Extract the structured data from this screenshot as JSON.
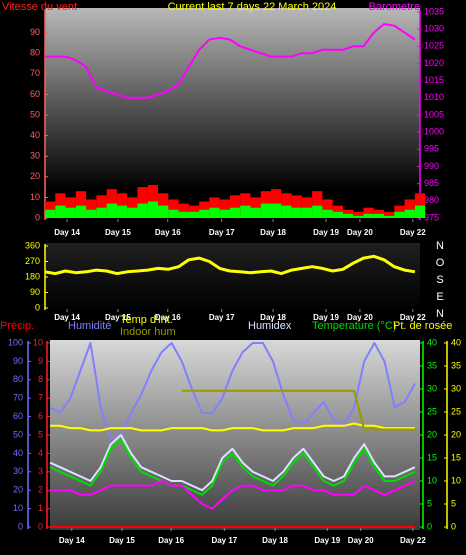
{
  "chart_data": [
    {
      "type": "combo",
      "title": "Current last 7 days 22 March 2024",
      "ylabel": "Vitesse du vent",
      "x": [
        0,
        0.2,
        0.4,
        0.6,
        0.8,
        1,
        1.2,
        1.4,
        1.6,
        1.8,
        2,
        2.2,
        2.4,
        2.6,
        2.8,
        3,
        3.2,
        3.4,
        3.6,
        3.8,
        4,
        4.2,
        4.4,
        4.6,
        4.8,
        5,
        5.2,
        5.4,
        5.6,
        5.8,
        6,
        6.2,
        6.4,
        6.6,
        6.8,
        7,
        7.2
      ],
      "xlim": [
        0,
        7.3
      ],
      "xticks": [
        {
          "value": 0.43,
          "label": "Day 14"
        },
        {
          "value": 1.42,
          "label": "Day 15"
        },
        {
          "value": 2.39,
          "label": "Day 16"
        },
        {
          "value": 3.44,
          "label": "Day 17"
        },
        {
          "value": 4.44,
          "label": "Day 18"
        },
        {
          "value": 5.47,
          "label": "Day 19"
        },
        {
          "value": 6.13,
          "label": "Day 20"
        },
        {
          "value": 7.16,
          "label": "Day 22"
        }
      ],
      "ylim": [
        0,
        100
      ],
      "yticks": [
        0,
        10,
        20,
        30,
        40,
        50,
        60,
        70,
        80,
        90
      ],
      "ycolor": "#ff6060",
      "y2lim": [
        975,
        1035
      ],
      "y2ticks": [
        975,
        980,
        985,
        990,
        995,
        1000,
        1005,
        1010,
        1015,
        1020,
        1025,
        1030,
        1035
      ],
      "y2color": "#ff00ff",
      "series": [
        {
          "color": "#ff0000",
          "kind": "bar",
          "values": [
            8,
            12,
            10,
            13,
            9,
            11,
            14,
            12,
            10,
            15,
            16,
            12,
            9,
            7,
            6,
            8,
            10,
            9,
            11,
            12,
            10,
            13,
            14,
            12,
            11,
            10,
            13,
            9,
            6,
            4,
            3,
            5,
            4,
            3,
            6,
            9,
            12
          ]
        },
        {
          "color": "#00ff00",
          "kind": "bar",
          "values": [
            4,
            6,
            5,
            6,
            4,
            5,
            7,
            6,
            5,
            7,
            8,
            6,
            4,
            3,
            3,
            4,
            5,
            4,
            5,
            6,
            5,
            7,
            7,
            6,
            5,
            5,
            6,
            4,
            3,
            2,
            1,
            2,
            2,
            1,
            3,
            4,
            6
          ]
        },
        {
          "name": "Barometre",
          "color": "#ff00ff",
          "axis": "y2",
          "values": [
            1022,
            1022,
            1022,
            1021,
            1019,
            1013,
            1012,
            1011,
            1010,
            1010,
            1010,
            1011,
            1012,
            1014,
            1019,
            1024,
            1027,
            1027.5,
            1027,
            1025,
            1024,
            1023,
            1022,
            1022,
            1022,
            1023,
            1023,
            1024,
            1024,
            1024,
            1025,
            1025,
            1029,
            1031.5,
            1031,
            1029,
            1027
          ]
        }
      ]
    },
    {
      "type": "line",
      "x": [
        0,
        0.2,
        0.4,
        0.6,
        0.8,
        1,
        1.2,
        1.4,
        1.6,
        1.8,
        2,
        2.2,
        2.4,
        2.6,
        2.8,
        3,
        3.2,
        3.4,
        3.6,
        3.8,
        4,
        4.2,
        4.4,
        4.6,
        4.8,
        5,
        5.2,
        5.4,
        5.6,
        5.8,
        6,
        6.2,
        6.4,
        6.6,
        6.8,
        7,
        7.2
      ],
      "xlim": [
        0,
        7.3
      ],
      "xticks": [
        {
          "value": 0.43,
          "label": "Day 14"
        },
        {
          "value": 1.42,
          "label": "Day 15"
        },
        {
          "value": 2.39,
          "label": "Day 16"
        },
        {
          "value": 3.44,
          "label": "Day 17"
        },
        {
          "value": 4.44,
          "label": "Day 18"
        },
        {
          "value": 5.47,
          "label": "Day 19"
        },
        {
          "value": 6.13,
          "label": "Day 20"
        },
        {
          "value": 7.16,
          "label": "Day 22"
        }
      ],
      "ylim": [
        0,
        360
      ],
      "yticks": [
        0,
        90,
        180,
        270,
        360
      ],
      "ycolor": "#ffff00",
      "compass": [
        "N",
        "O",
        "S",
        "E",
        "N"
      ],
      "series": [
        {
          "color": "#ffff00",
          "values": [
            210,
            200,
            215,
            205,
            210,
            220,
            215,
            200,
            210,
            215,
            220,
            230,
            225,
            240,
            280,
            290,
            270,
            230,
            215,
            210,
            205,
            210,
            215,
            200,
            220,
            230,
            240,
            230,
            215,
            225,
            260,
            290,
            300,
            280,
            240,
            220,
            210
          ]
        }
      ]
    },
    {
      "type": "line",
      "x": [
        0,
        0.2,
        0.4,
        0.6,
        0.8,
        1,
        1.2,
        1.4,
        1.6,
        1.8,
        2,
        2.2,
        2.4,
        2.6,
        2.8,
        3,
        3.2,
        3.4,
        3.6,
        3.8,
        4,
        4.2,
        4.4,
        4.6,
        4.8,
        5,
        5.2,
        5.4,
        5.6,
        5.8,
        6,
        6.2,
        6.4,
        6.6,
        6.8,
        7,
        7.2
      ],
      "xlim": [
        0,
        7.3
      ],
      "xticks": [
        {
          "value": 0.43,
          "label": "Day 14"
        },
        {
          "value": 1.42,
          "label": "Day 15"
        },
        {
          "value": 2.39,
          "label": "Day 16"
        },
        {
          "value": 3.44,
          "label": "Day 17"
        },
        {
          "value": 4.44,
          "label": "Day 18"
        },
        {
          "value": 5.47,
          "label": "Day 19"
        },
        {
          "value": 6.13,
          "label": "Day 20"
        },
        {
          "value": 7.16,
          "label": "Day 22"
        }
      ],
      "ylim": [
        0,
        100
      ],
      "yticks": [
        0,
        10,
        20,
        30,
        40,
        50,
        60,
        70,
        80,
        90,
        100
      ],
      "ycolor": "#7070ff",
      "plim": [
        0,
        10
      ],
      "pticks": [
        0,
        1,
        2,
        3,
        4,
        5,
        6,
        7,
        8,
        9,
        10
      ],
      "pcolor": "#ff2020",
      "y2lim": [
        0,
        40
      ],
      "y2ticks": [
        0,
        5,
        10,
        15,
        20,
        25,
        30,
        35,
        40
      ],
      "y2color": "#00ff00",
      "y3lim": [
        0,
        40
      ],
      "y3ticks": [
        0,
        5,
        10,
        15,
        20,
        25,
        30,
        35,
        40
      ],
      "y3color": "#ffff00",
      "series": [
        {
          "name": "Précip.",
          "color": "#ff0000",
          "axis": "p",
          "values": [
            0,
            0,
            0,
            0,
            0,
            0,
            0,
            0,
            0,
            0,
            0,
            0,
            0,
            0,
            0,
            0,
            0,
            0,
            0,
            0,
            0,
            0,
            0,
            0,
            0,
            0,
            0,
            0,
            0,
            0,
            0,
            0,
            0,
            0,
            0,
            0,
            0
          ]
        },
        {
          "name": "Humidité",
          "color": "#8080ff",
          "values": [
            65,
            62,
            70,
            85,
            100,
            65,
            48,
            50,
            62,
            72,
            85,
            95,
            100,
            90,
            75,
            62,
            62,
            70,
            85,
            95,
            100,
            100,
            90,
            72,
            58,
            56,
            62,
            68,
            58,
            55,
            65,
            90,
            100,
            90,
            65,
            68,
            78
          ]
        },
        {
          "name": "Temp d'int.",
          "color": "#ffff00",
          "axis": "y2",
          "values": [
            22,
            22,
            21.5,
            21.5,
            21,
            21,
            21.5,
            21.5,
            21.5,
            21,
            21,
            21,
            21.5,
            21.5,
            21.5,
            21.5,
            21,
            21,
            21.5,
            21.5,
            21.5,
            21,
            21,
            21,
            21.5,
            21.5,
            21.5,
            22,
            22,
            22,
            22.5,
            22,
            22,
            21.5,
            21.5,
            21.5,
            21.5
          ]
        },
        {
          "name": "Indoor hum",
          "color": "#999900",
          "values": [
            null,
            null,
            null,
            null,
            null,
            null,
            null,
            null,
            null,
            null,
            null,
            null,
            null,
            74,
            74,
            74,
            74,
            74,
            74,
            74,
            74,
            74,
            74,
            74,
            74,
            74,
            74,
            74,
            74,
            74,
            74,
            53,
            53,
            53,
            53,
            53,
            53
          ]
        },
        {
          "name": "Humidex",
          "color": "#d8e4ff",
          "axis": "y2",
          "values": [
            14,
            13,
            12,
            11,
            10,
            13,
            18,
            20,
            16,
            13,
            12,
            11,
            10,
            10,
            9,
            8,
            10,
            15,
            17,
            14,
            12,
            11,
            10,
            12,
            15,
            17,
            14,
            11,
            10,
            11,
            15,
            18,
            14,
            11,
            11,
            12,
            13
          ]
        },
        {
          "name": "Temperature (°C)",
          "color": "#00dd00",
          "axis": "y2",
          "values": [
            13,
            12,
            11,
            10,
            9,
            12,
            17,
            19,
            15,
            12,
            11,
            10,
            9,
            9,
            8,
            7,
            9,
            14,
            16,
            13,
            11,
            10,
            9,
            11,
            14,
            16,
            13,
            10,
            9,
            10,
            14,
            17,
            13,
            10,
            10,
            11,
            12
          ]
        },
        {
          "name": "Pt. de rosée",
          "color": "#ff00ff",
          "label_color": "#ffff00",
          "axis": "y2",
          "values": [
            8,
            8,
            8,
            7,
            7,
            8,
            9,
            9,
            9,
            9,
            9,
            10,
            9,
            9,
            7,
            5,
            4,
            6,
            8,
            9,
            9,
            8,
            8,
            8,
            9,
            9,
            8,
            8,
            7,
            7,
            7,
            9,
            8,
            7,
            8,
            9,
            10
          ]
        }
      ]
    }
  ]
}
